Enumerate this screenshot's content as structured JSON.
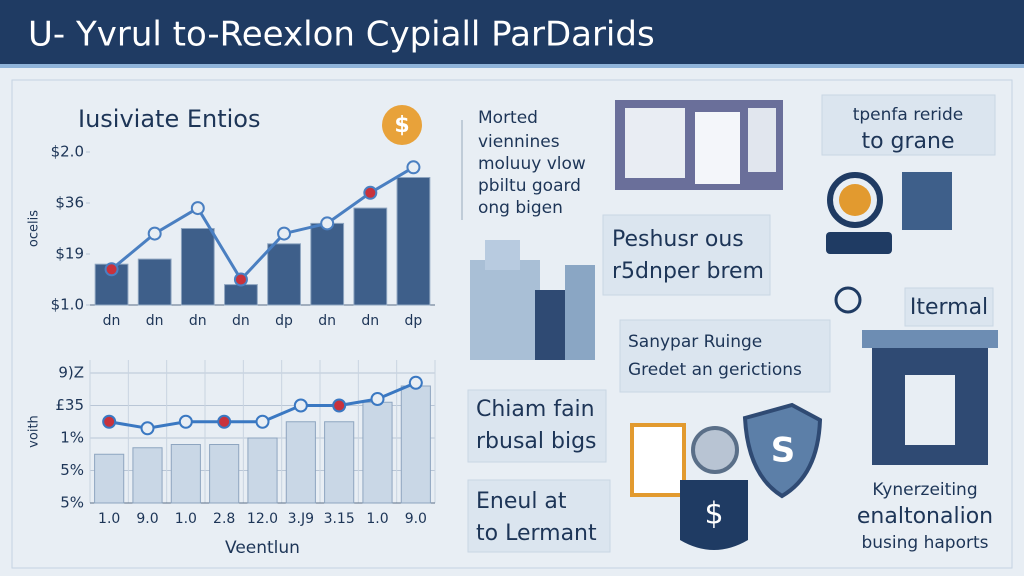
{
  "header": {
    "title": "U- Yvrul to-Reexlon Cypiall ParDarids"
  },
  "chart_data": [
    {
      "type": "bar",
      "title": "Iusiviate Entios",
      "y_label": "ocelis",
      "categories": [
        "dn",
        "dn",
        "dn",
        "dn",
        "dp",
        "dn",
        "dn",
        "dp"
      ],
      "values": [
        1.8,
        1.9,
        2.5,
        1.4,
        2.2,
        2.6,
        2.9,
        3.5
      ],
      "color": "#3e5f8a",
      "line": {
        "values": [
          1.7,
          2.4,
          2.9,
          1.5,
          2.4,
          2.6,
          3.2,
          3.7
        ],
        "color": "#4a7fc1"
      },
      "ylim": [
        1,
        4
      ],
      "yticks": [
        {
          "value": 1,
          "label": "$1.0"
        },
        {
          "value": 2,
          "label": "$19"
        },
        {
          "value": 3,
          "label": "$36"
        },
        {
          "value": 4,
          "label": "$2.0"
        }
      ]
    },
    {
      "type": "bar",
      "y_label": "voith",
      "x_label": "Veentlun",
      "categories": [
        "1.0",
        "9.0",
        "1.0",
        "2.8",
        "12.0",
        "3.J9",
        "3.15",
        "1.0",
        "9.0"
      ],
      "values": [
        1.5,
        1.7,
        1.8,
        1.8,
        2.0,
        2.5,
        2.5,
        3.1,
        3.6
      ],
      "color": "#c9d7e6",
      "line": {
        "values": [
          2.5,
          2.3,
          2.5,
          2.5,
          2.5,
          3.0,
          3.0,
          3.2,
          3.7
        ],
        "color": "#3a78c2"
      },
      "ylim": [
        0,
        4.4
      ],
      "yticks": [
        {
          "value": 0,
          "label": "5%"
        },
        {
          "value": 1,
          "label": "5%"
        },
        {
          "value": 2,
          "label": "1%"
        },
        {
          "value": 3,
          "label": "£35"
        },
        {
          "value": 4,
          "label": "9)Z"
        }
      ],
      "grid": true
    }
  ],
  "panels": {
    "notes": [
      "Morted",
      "viennines",
      "moluuy vlow",
      "pbiltu goard",
      "ong bigen"
    ],
    "box1": [
      "tpenfa reride",
      "to grane"
    ],
    "box2": [
      "Peshusr ous",
      "r5dnper brem"
    ],
    "box3": [
      "Sanypar Ruinge",
      "Gredet an gerictions"
    ],
    "box4": [
      "Itermal"
    ],
    "box5": [
      "Chiam fain",
      "rbusal bigs"
    ],
    "box6": [
      "Eneul at",
      "to Lermant"
    ],
    "footer": [
      "Kynerzeiting",
      "enaltonalion",
      "busing haports"
    ]
  }
}
